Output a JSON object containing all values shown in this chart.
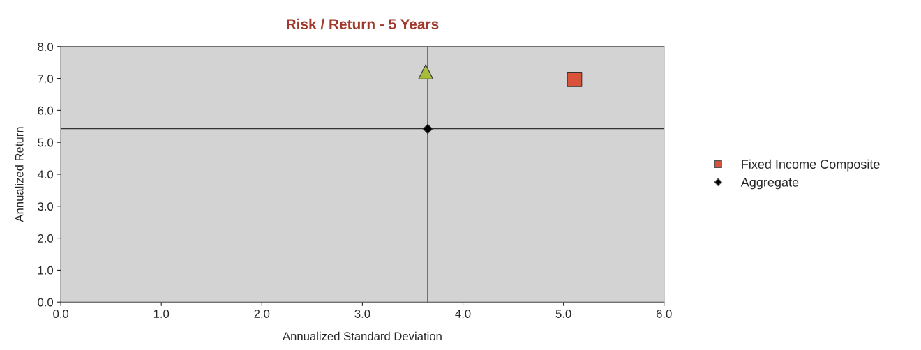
{
  "chart_data": {
    "type": "scatter",
    "title": "Risk / Return - 5 Years",
    "xlabel": "Annualized Standard Deviation",
    "ylabel": "Annualized Return",
    "series": [
      {
        "name": "Fixed Income Composite",
        "color": "#d9533a",
        "marker": "square",
        "x": [
          5.11
        ],
        "values": [
          6.97
        ]
      },
      {
        "color": "#a8bc3c",
        "marker": "triangle",
        "x": [
          3.63
        ],
        "values": [
          7.21
        ]
      },
      {
        "name": "Aggregate",
        "color": "#000000",
        "marker": "diamond",
        "x": [
          3.65
        ],
        "values": [
          5.42
        ]
      }
    ],
    "ref_lines": [
      {
        "axis": "x",
        "value": 3.65,
        "color": "#333333"
      },
      {
        "axis": "y",
        "value": 5.43,
        "color": "#333333"
      }
    ],
    "xlim": [
      0,
      6
    ],
    "ylim": [
      0,
      8
    ],
    "xticks": [
      {
        "value": 0,
        "label": "0.0"
      },
      {
        "value": 1,
        "label": "1.0"
      },
      {
        "value": 2,
        "label": "2.0"
      },
      {
        "value": 3,
        "label": "3.0"
      },
      {
        "value": 4,
        "label": "4.0"
      },
      {
        "value": 5,
        "label": "5.0"
      },
      {
        "value": 6,
        "label": "6.0"
      }
    ],
    "yticks": [
      {
        "value": 0,
        "label": "0.0"
      },
      {
        "value": 1,
        "label": "1.0"
      },
      {
        "value": 2,
        "label": "2.0"
      },
      {
        "value": 3,
        "label": "3.0"
      },
      {
        "value": 4,
        "label": "4.0"
      },
      {
        "value": 5,
        "label": "5.0"
      },
      {
        "value": 6,
        "label": "6.0"
      },
      {
        "value": 7,
        "label": "7.0"
      },
      {
        "value": 8,
        "label": "8.0"
      }
    ],
    "grid": false,
    "legend": "right"
  }
}
